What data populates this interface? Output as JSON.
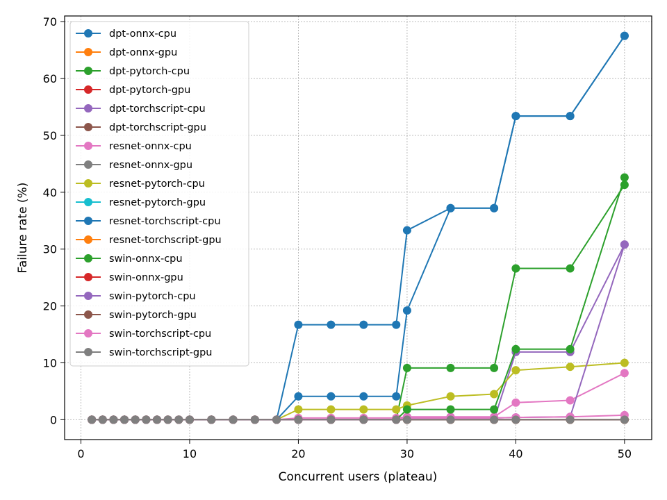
{
  "chart_data": {
    "type": "line",
    "xlabel": "Concurrent users (plateau)",
    "ylabel": "Failure rate (%)",
    "xlim": [
      -1.5,
      52.5
    ],
    "ylim": [
      -3.5,
      71
    ],
    "xticks": [
      0,
      10,
      20,
      30,
      40,
      50
    ],
    "yticks": [
      0,
      10,
      20,
      30,
      40,
      50,
      60,
      70
    ],
    "grid": true,
    "legend_position": "top-left",
    "series": [
      {
        "name": "dpt-onnx-cpu",
        "color": "#1f77b4",
        "x": [
          1,
          2,
          3,
          4,
          5,
          6,
          7,
          8,
          9,
          10,
          12,
          14,
          16,
          18,
          20,
          23,
          26,
          29,
          30,
          34,
          38,
          40,
          45,
          50
        ],
        "y": [
          0,
          0,
          0,
          0,
          0,
          0,
          0,
          0,
          0,
          0,
          0,
          0,
          0,
          0,
          16.7,
          16.7,
          16.7,
          16.7,
          33.3,
          37.2,
          37.2,
          53.4,
          53.4,
          67.5
        ]
      },
      {
        "name": "dpt-onnx-gpu",
        "color": "#ff7f0e",
        "x": [
          1,
          2,
          3,
          4,
          5,
          6,
          7,
          8,
          9,
          10,
          12,
          14,
          16,
          18,
          20,
          23,
          26,
          29,
          30,
          34,
          38,
          40,
          45,
          50
        ],
        "y": [
          0,
          0,
          0,
          0,
          0,
          0,
          0,
          0,
          0,
          0,
          0,
          0,
          0,
          0,
          0,
          0,
          0,
          0,
          0,
          0,
          0,
          0,
          0,
          0
        ]
      },
      {
        "name": "dpt-pytorch-cpu",
        "color": "#2ca02c",
        "x": [
          1,
          2,
          3,
          4,
          5,
          6,
          7,
          8,
          9,
          10,
          12,
          14,
          16,
          18,
          20,
          23,
          26,
          29,
          30,
          34,
          38,
          40,
          45,
          50
        ],
        "y": [
          0,
          0,
          0,
          0,
          0,
          0,
          0,
          0,
          0,
          0,
          0,
          0,
          0,
          0,
          0,
          0,
          0,
          0,
          9.1,
          9.1,
          9.1,
          26.6,
          26.6,
          41.3
        ]
      },
      {
        "name": "dpt-pytorch-gpu",
        "color": "#d62728",
        "x": [
          1,
          2,
          3,
          4,
          5,
          6,
          7,
          8,
          9,
          10,
          12,
          14,
          16,
          18,
          20,
          23,
          26,
          29,
          30,
          34,
          38,
          40,
          45,
          50
        ],
        "y": [
          0,
          0,
          0,
          0,
          0,
          0,
          0,
          0,
          0,
          0,
          0,
          0,
          0,
          0,
          0,
          0,
          0,
          0,
          0,
          0,
          0,
          0,
          0,
          0
        ]
      },
      {
        "name": "dpt-torchscript-cpu",
        "color": "#9467bd",
        "x": [
          1,
          2,
          3,
          4,
          5,
          6,
          7,
          8,
          9,
          10,
          12,
          14,
          16,
          18,
          20,
          23,
          26,
          29,
          30,
          34,
          38,
          40,
          45,
          50
        ],
        "y": [
          0,
          0,
          0,
          0,
          0,
          0,
          0,
          0,
          0,
          0,
          0,
          0,
          0,
          0,
          0,
          0,
          0,
          0,
          0,
          0,
          0,
          11.9,
          11.9,
          30.8
        ]
      },
      {
        "name": "dpt-torchscript-gpu",
        "color": "#8c564b",
        "x": [
          1,
          2,
          3,
          4,
          5,
          6,
          7,
          8,
          9,
          10,
          12,
          14,
          16,
          18,
          20,
          23,
          26,
          29,
          30,
          34,
          38,
          40,
          45,
          50
        ],
        "y": [
          0,
          0,
          0,
          0,
          0,
          0,
          0,
          0,
          0,
          0,
          0,
          0,
          0,
          0,
          0,
          0,
          0,
          0,
          0,
          0,
          0,
          0,
          0,
          0
        ]
      },
      {
        "name": "resnet-onnx-cpu",
        "color": "#e377c2",
        "x": [
          1,
          2,
          3,
          4,
          5,
          6,
          7,
          8,
          9,
          10,
          12,
          14,
          16,
          18,
          20,
          23,
          26,
          29,
          30,
          34,
          38,
          40,
          45,
          50
        ],
        "y": [
          0,
          0,
          0,
          0,
          0,
          0,
          0,
          0,
          0,
          0,
          0,
          0,
          0,
          0,
          0.3,
          0.3,
          0.3,
          0.3,
          0.5,
          0.5,
          0.5,
          3.0,
          3.4,
          8.2
        ]
      },
      {
        "name": "resnet-onnx-gpu",
        "color": "#7f7f7f",
        "x": [
          1,
          2,
          3,
          4,
          5,
          6,
          7,
          8,
          9,
          10,
          12,
          14,
          16,
          18,
          20,
          23,
          26,
          29,
          30,
          34,
          38,
          40,
          45,
          50
        ],
        "y": [
          0,
          0,
          0,
          0,
          0,
          0,
          0,
          0,
          0,
          0,
          0,
          0,
          0,
          0,
          0,
          0,
          0,
          0,
          0,
          0,
          0,
          0,
          0,
          0
        ]
      },
      {
        "name": "resnet-pytorch-cpu",
        "color": "#bcbd22",
        "x": [
          1,
          2,
          3,
          4,
          5,
          6,
          7,
          8,
          9,
          10,
          12,
          14,
          16,
          18,
          20,
          23,
          26,
          29,
          30,
          34,
          38,
          40,
          45,
          50
        ],
        "y": [
          0,
          0,
          0,
          0,
          0,
          0,
          0,
          0,
          0,
          0,
          0,
          0,
          0,
          0,
          1.8,
          1.8,
          1.8,
          1.8,
          2.5,
          4.1,
          4.5,
          8.7,
          9.3,
          10.0
        ]
      },
      {
        "name": "resnet-pytorch-gpu",
        "color": "#17becf",
        "x": [
          1,
          2,
          3,
          4,
          5,
          6,
          7,
          8,
          9,
          10,
          12,
          14,
          16,
          18,
          20,
          23,
          26,
          29,
          30,
          34,
          38,
          40,
          45,
          50
        ],
        "y": [
          0,
          0,
          0,
          0,
          0,
          0,
          0,
          0,
          0,
          0,
          0,
          0,
          0,
          0,
          0,
          0,
          0,
          0,
          0,
          0,
          0,
          0,
          0,
          0
        ]
      },
      {
        "name": "resnet-torchscript-cpu",
        "color": "#1f77b4",
        "x": [
          1,
          2,
          3,
          4,
          5,
          6,
          7,
          8,
          9,
          10,
          12,
          14,
          16,
          18,
          20,
          23,
          26,
          29,
          30,
          34,
          38,
          40,
          45,
          50
        ],
        "y": [
          0,
          0,
          0,
          0,
          0,
          0,
          0,
          0,
          0,
          0,
          0,
          0,
          0,
          0,
          4.1,
          4.1,
          4.1,
          4.1,
          19.2,
          37.2,
          37.2,
          53.4,
          53.4,
          67.5
        ]
      },
      {
        "name": "resnet-torchscript-gpu",
        "color": "#ff7f0e",
        "x": [
          1,
          2,
          3,
          4,
          5,
          6,
          7,
          8,
          9,
          10,
          12,
          14,
          16,
          18,
          20,
          23,
          26,
          29,
          30,
          34,
          38,
          40,
          45,
          50
        ],
        "y": [
          0,
          0,
          0,
          0,
          0,
          0,
          0,
          0,
          0,
          0,
          0,
          0,
          0,
          0,
          0,
          0,
          0,
          0,
          0,
          0,
          0,
          0,
          0,
          0
        ]
      },
      {
        "name": "swin-onnx-cpu",
        "color": "#2ca02c",
        "x": [
          1,
          2,
          3,
          4,
          5,
          6,
          7,
          8,
          9,
          10,
          12,
          14,
          16,
          18,
          20,
          23,
          26,
          29,
          30,
          34,
          38,
          40,
          45,
          50
        ],
        "y": [
          0,
          0,
          0,
          0,
          0,
          0,
          0,
          0,
          0,
          0,
          0,
          0,
          0,
          0,
          0,
          0,
          0,
          0,
          1.8,
          1.8,
          1.8,
          12.4,
          12.4,
          42.6
        ]
      },
      {
        "name": "swin-onnx-gpu",
        "color": "#d62728",
        "x": [
          1,
          2,
          3,
          4,
          5,
          6,
          7,
          8,
          9,
          10,
          12,
          14,
          16,
          18,
          20,
          23,
          26,
          29,
          30,
          34,
          38,
          40,
          45,
          50
        ],
        "y": [
          0,
          0,
          0,
          0,
          0,
          0,
          0,
          0,
          0,
          0,
          0,
          0,
          0,
          0,
          0,
          0,
          0,
          0,
          0,
          0,
          0,
          0,
          0,
          0
        ]
      },
      {
        "name": "swin-pytorch-cpu",
        "color": "#9467bd",
        "x": [
          1,
          2,
          3,
          4,
          5,
          6,
          7,
          8,
          9,
          10,
          12,
          14,
          16,
          18,
          20,
          23,
          26,
          29,
          30,
          34,
          38,
          40,
          45,
          50
        ],
        "y": [
          0,
          0,
          0,
          0,
          0,
          0,
          0,
          0,
          0,
          0,
          0,
          0,
          0,
          0,
          0,
          0,
          0,
          0,
          0.3,
          0.3,
          0.3,
          0.4,
          0.5,
          30.8
        ]
      },
      {
        "name": "swin-pytorch-gpu",
        "color": "#8c564b",
        "x": [
          1,
          2,
          3,
          4,
          5,
          6,
          7,
          8,
          9,
          10,
          12,
          14,
          16,
          18,
          20,
          23,
          26,
          29,
          30,
          34,
          38,
          40,
          45,
          50
        ],
        "y": [
          0,
          0,
          0,
          0,
          0,
          0,
          0,
          0,
          0,
          0,
          0,
          0,
          0,
          0,
          0,
          0,
          0,
          0,
          0,
          0,
          0,
          0,
          0,
          0
        ]
      },
      {
        "name": "swin-torchscript-cpu",
        "color": "#e377c2",
        "x": [
          1,
          2,
          3,
          4,
          5,
          6,
          7,
          8,
          9,
          10,
          12,
          14,
          16,
          18,
          20,
          23,
          26,
          29,
          30,
          34,
          38,
          40,
          45,
          50
        ],
        "y": [
          0,
          0,
          0,
          0,
          0,
          0,
          0,
          0,
          0,
          0,
          0,
          0,
          0,
          0,
          0,
          0,
          0,
          0,
          0.3,
          0.3,
          0.3,
          0.4,
          0.5,
          0.8
        ]
      },
      {
        "name": "swin-torchscript-gpu",
        "color": "#7f7f7f",
        "x": [
          1,
          2,
          3,
          4,
          5,
          6,
          7,
          8,
          9,
          10,
          12,
          14,
          16,
          18,
          20,
          23,
          26,
          29,
          30,
          34,
          38,
          40,
          45,
          50
        ],
        "y": [
          0,
          0,
          0,
          0,
          0,
          0,
          0,
          0,
          0,
          0,
          0,
          0,
          0,
          0,
          0,
          0,
          0,
          0,
          0,
          0,
          0,
          0,
          0,
          0
        ]
      }
    ]
  }
}
